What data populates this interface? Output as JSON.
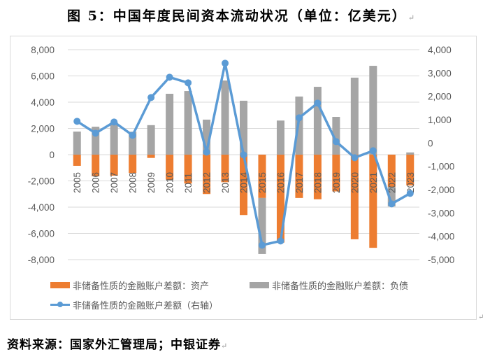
{
  "title": "图 5：中国年度民间资本流动状况（单位：亿美元）",
  "source": "资料来源：国家外汇管理局；中银证券",
  "paragraph_mark": "↵",
  "colors": {
    "assets": "#ed7d31",
    "liabilities": "#a5a5a5",
    "net_line": "#5b9bd5",
    "grid": "#d9d9d9",
    "axis_text": "#595959"
  },
  "legend": {
    "assets": "非储备性质的金融账户差额：资产",
    "liabilities": "非储备性质的金融账户差额：负债",
    "net": "非储备性质的金融账户差额（右轴）"
  },
  "chart_data": {
    "type": "bar",
    "title": "图 5：中国年度民间资本流动状况（单位：亿美元）",
    "xlabel": "",
    "ylabel": "亿美元",
    "categories": [
      "2005",
      "2006",
      "2007",
      "2008",
      "2009",
      "2010",
      "2011",
      "2012",
      "2013",
      "2014",
      "2015",
      "2016",
      "2017",
      "2018",
      "2019",
      "2020",
      "2021",
      "2022",
      "2023"
    ],
    "series": [
      {
        "name": "非储备性质的金融账户差额：资产",
        "type": "bar",
        "axis": "left",
        "color": "#ed7d31",
        "values": [
          -850,
          -1650,
          -1600,
          -1400,
          -250,
          -1900,
          -2200,
          -3000,
          -2100,
          -4600,
          -3300,
          -6700,
          -3300,
          -3400,
          -2800,
          -6450,
          -7100,
          -2450,
          -2350
        ]
      },
      {
        "name": "非储备性质的金融账户差额：负债",
        "type": "bar",
        "axis": "left",
        "color": "#a5a5a5",
        "values": [
          1760,
          2130,
          2450,
          1750,
          2250,
          4640,
          4850,
          2670,
          5650,
          4110,
          -4270,
          2600,
          4430,
          5170,
          2880,
          5870,
          6770,
          -1500,
          170
        ]
      },
      {
        "name": "非储备性质的金融账户差额（右轴）",
        "type": "line",
        "axis": "right",
        "color": "#5b9bd5",
        "values": [
          930,
          420,
          900,
          330,
          1950,
          2820,
          2580,
          -390,
          3420,
          -510,
          -4380,
          -4200,
          1080,
          1710,
          60,
          -630,
          -330,
          -2610,
          -2160
        ]
      }
    ],
    "left_axis": {
      "ylim": [
        -8000,
        8000
      ],
      "ticks": [
        "8,000",
        "6,000",
        "4,000",
        "2,000",
        "0",
        "-2,000",
        "-4,000",
        "-6,000",
        "-8,000"
      ],
      "tick_values": [
        8000,
        6000,
        4000,
        2000,
        0,
        -2000,
        -4000,
        -6000,
        -8000
      ]
    },
    "right_axis": {
      "ylim": [
        -5000,
        4000
      ],
      "ticks": [
        "4,000",
        "3,000",
        "2,000",
        "1,000",
        "0",
        "-1,000",
        "-2,000",
        "-3,000",
        "-4,000",
        "-5,000"
      ],
      "tick_values": [
        4000,
        3000,
        2000,
        1000,
        0,
        -1000,
        -2000,
        -3000,
        -4000,
        -5000
      ]
    },
    "grid": true,
    "legend_position": "bottom",
    "stacked": true
  }
}
